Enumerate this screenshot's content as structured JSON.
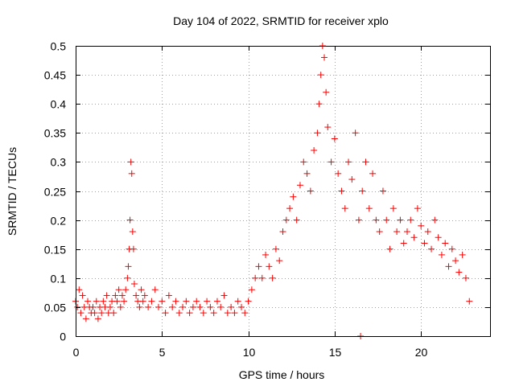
{
  "chart_data": {
    "type": "scatter",
    "title": "Day 104 of 2022, SRMTID for receiver xplo",
    "xlabel": "GPS time / hours",
    "ylabel": "SRMTID / TECUs",
    "xlim": [
      0,
      24
    ],
    "ylim": [
      0,
      0.5
    ],
    "xticks": [
      0,
      5,
      10,
      15,
      20
    ],
    "xtick_labels": [
      "0",
      "5",
      "10",
      "15",
      "20"
    ],
    "yticks": [
      0,
      0.05,
      0.1,
      0.15,
      0.2,
      0.25,
      0.3,
      0.35,
      0.4,
      0.45,
      0.5
    ],
    "ytick_labels": [
      "0",
      "0.05",
      "0.1",
      "0.15",
      "0.2",
      "0.25",
      "0.3",
      "0.35",
      "0.4",
      "0.45",
      "0.5"
    ],
    "grid": true,
    "marker": "+",
    "series": [
      {
        "name": "SRMTID",
        "color": "#ff0000",
        "x": [
          0.0,
          0.1,
          0.2,
          0.3,
          0.4,
          0.5,
          0.6,
          0.7,
          0.8,
          0.9,
          1.0,
          1.1,
          1.2,
          1.3,
          1.4,
          1.5,
          1.6,
          1.7,
          1.8,
          1.9,
          2.0,
          2.1,
          2.2,
          2.3,
          2.4,
          2.5,
          2.6,
          2.7,
          2.8,
          2.9,
          3.0,
          3.05,
          3.1,
          3.15,
          3.2,
          3.25,
          3.3,
          3.35,
          3.4,
          3.5,
          3.6,
          3.7,
          3.8,
          3.9,
          4.0,
          4.2,
          4.4,
          4.6,
          4.8,
          5.0,
          5.2,
          5.4,
          5.6,
          5.8,
          6.0,
          6.2,
          6.4,
          6.6,
          6.8,
          7.0,
          7.2,
          7.4,
          7.6,
          7.8,
          8.0,
          8.2,
          8.4,
          8.6,
          8.8,
          9.0,
          9.2,
          9.4,
          9.6,
          9.8,
          10.0,
          10.2,
          10.4,
          10.6,
          10.8,
          11.0,
          11.2,
          11.4,
          11.6,
          11.8,
          12.0,
          12.2,
          12.4,
          12.6,
          12.8,
          13.0,
          13.2,
          13.4,
          13.6,
          13.8,
          14.0,
          14.1,
          14.2,
          14.3,
          14.4,
          14.5,
          14.6,
          14.8,
          15.0,
          15.2,
          15.4,
          15.6,
          15.8,
          16.0,
          16.2,
          16.4,
          16.5,
          16.6,
          16.8,
          17.0,
          17.2,
          17.4,
          17.6,
          17.8,
          18.0,
          18.2,
          18.4,
          18.6,
          18.8,
          19.0,
          19.2,
          19.4,
          19.6,
          19.8,
          20.0,
          20.2,
          20.4,
          20.6,
          20.8,
          21.0,
          21.2,
          21.4,
          21.6,
          21.8,
          22.0,
          22.2,
          22.4,
          22.6,
          22.8
        ],
        "y": [
          0.06,
          0.05,
          0.08,
          0.04,
          0.07,
          0.05,
          0.03,
          0.06,
          0.05,
          0.04,
          0.05,
          0.04,
          0.06,
          0.03,
          0.05,
          0.04,
          0.06,
          0.05,
          0.07,
          0.04,
          0.05,
          0.06,
          0.04,
          0.07,
          0.06,
          0.08,
          0.05,
          0.07,
          0.06,
          0.08,
          0.1,
          0.12,
          0.15,
          0.2,
          0.3,
          0.28,
          0.18,
          0.15,
          0.09,
          0.07,
          0.06,
          0.05,
          0.08,
          0.06,
          0.07,
          0.05,
          0.06,
          0.08,
          0.05,
          0.06,
          0.04,
          0.07,
          0.05,
          0.06,
          0.04,
          0.05,
          0.06,
          0.04,
          0.05,
          0.06,
          0.05,
          0.04,
          0.06,
          0.05,
          0.04,
          0.06,
          0.05,
          0.07,
          0.04,
          0.05,
          0.04,
          0.06,
          0.05,
          0.04,
          0.06,
          0.08,
          0.1,
          0.12,
          0.1,
          0.14,
          0.12,
          0.1,
          0.15,
          0.13,
          0.18,
          0.2,
          0.22,
          0.24,
          0.2,
          0.26,
          0.3,
          0.28,
          0.25,
          0.32,
          0.35,
          0.4,
          0.45,
          0.5,
          0.48,
          0.42,
          0.36,
          0.3,
          0.34,
          0.28,
          0.25,
          0.22,
          0.3,
          0.27,
          0.35,
          0.2,
          0.0,
          0.25,
          0.3,
          0.22,
          0.28,
          0.2,
          0.18,
          0.25,
          0.2,
          0.15,
          0.22,
          0.18,
          0.2,
          0.16,
          0.18,
          0.2,
          0.17,
          0.22,
          0.19,
          0.16,
          0.18,
          0.15,
          0.2,
          0.17,
          0.14,
          0.16,
          0.12,
          0.15,
          0.13,
          0.11,
          0.14,
          0.1,
          0.06
        ]
      }
    ]
  }
}
